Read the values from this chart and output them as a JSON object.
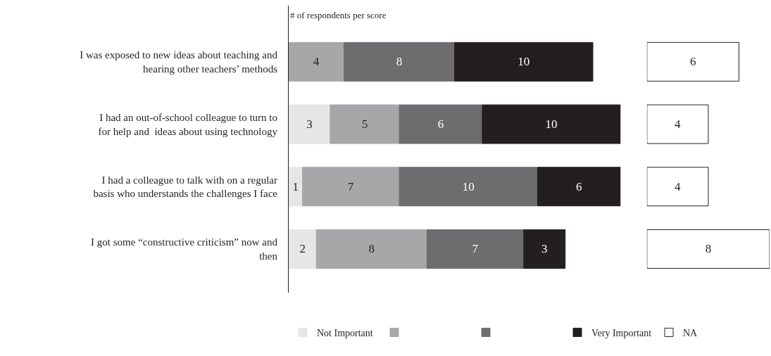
{
  "chart_data": [
    {
      "type": "bar",
      "orientation": "horizontal",
      "stacked": true,
      "data_labels": true,
      "tick_labels": "y",
      "legend": "bottom",
      "xlim": [
        0,
        24
      ],
      "annotations": [
        "# of respondents per score"
      ],
      "categories": [
        "I was exposed to new ideas about teaching and hearing other teachers’ methods",
        "I had an out-of-school colleague to turn to for help and  ideas about using technology",
        "I had a colleague to talk with on a regular basis who understands the challenges I face",
        "I got some “constructive criticism” now and then"
      ],
      "series": [
        {
          "name": "Not Important",
          "color": "#e6e6e7",
          "values": [
            null,
            3,
            1,
            2
          ]
        },
        {
          "color": "#a7a7a9",
          "values": [
            4,
            5,
            7,
            8
          ]
        },
        {
          "color": "#6d6d70",
          "values": [
            8,
            6,
            10,
            7
          ]
        },
        {
          "name": "Very Important",
          "color": "#231f20",
          "values": [
            10,
            10,
            6,
            3
          ]
        }
      ]
    },
    {
      "type": "bar",
      "orientation": "horizontal",
      "data_labels": true,
      "tick_labels": false,
      "legend": "bottom",
      "xlim": [
        0,
        8
      ],
      "categories": [
        null,
        null,
        null,
        null
      ],
      "series": [
        {
          "name": "NA",
          "color": "#ffffff",
          "values": [
            6,
            4,
            4,
            8
          ]
        }
      ]
    }
  ]
}
